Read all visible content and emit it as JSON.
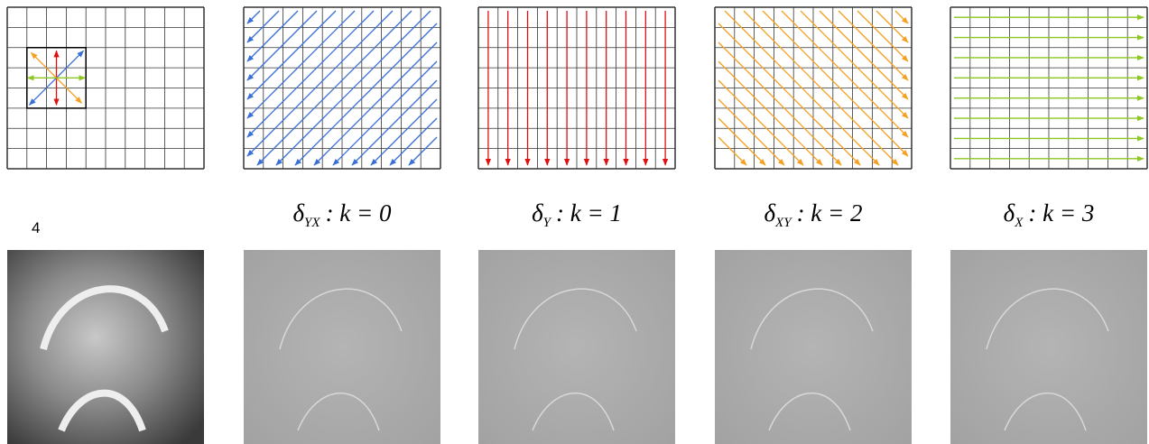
{
  "label_number": "4",
  "filters": [
    {
      "symbol": "δ",
      "subscript": "YX",
      "equation": ": k = 0"
    },
    {
      "symbol": "δ",
      "subscript": "Y",
      "equation": ": k = 1"
    },
    {
      "symbol": "δ",
      "subscript": "XY",
      "equation": ": k = 2"
    },
    {
      "symbol": "δ",
      "subscript": "X",
      "equation": ": k = 3"
    }
  ]
}
